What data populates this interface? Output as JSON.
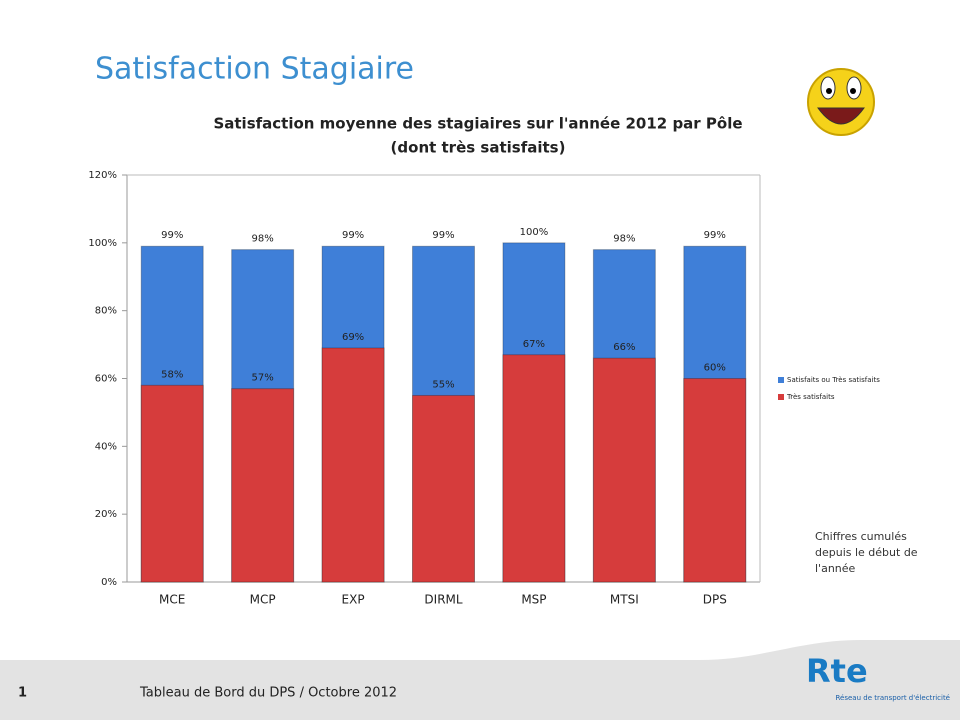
{
  "slide_title": "Satisfaction Stagiaire",
  "chart_data": {
    "type": "bar",
    "overlap": true,
    "title": "Satisfaction moyenne des stagiaires sur l'année 2012 par Pôle",
    "subtitle": "(dont très satisfaits)",
    "categories": [
      "MCE",
      "MCP",
      "EXP",
      "DIRML",
      "MSP",
      "MTSI",
      "DPS"
    ],
    "series": [
      {
        "name": "Satisfaits ou Très satisfaits",
        "color": "#3f7fd8",
        "values": [
          99,
          98,
          99,
          99,
          100,
          98,
          99
        ],
        "value_labels": [
          "99%",
          "98%",
          "99%",
          "99%",
          "100%",
          "98%",
          "99%"
        ]
      },
      {
        "name": "Très satisfaits",
        "color": "#d63c3c",
        "values": [
          58,
          57,
          69,
          55,
          67,
          66,
          60
        ],
        "value_labels": [
          "58%",
          "57%",
          "69%",
          "55%",
          "67%",
          "66%",
          "60%"
        ]
      }
    ],
    "ylim": [
      0,
      120
    ],
    "yticks": [
      {
        "value": 0,
        "label": "0%"
      },
      {
        "value": 20,
        "label": "20%"
      },
      {
        "value": 40,
        "label": "40%"
      },
      {
        "value": 60,
        "label": "60%"
      },
      {
        "value": 80,
        "label": "80%"
      },
      {
        "value": 100,
        "label": "100%"
      },
      {
        "value": 120,
        "label": "120%"
      }
    ],
    "legend": "right",
    "note": [
      "Chiffres cumulés",
      "depuis le début de",
      "l'année"
    ]
  },
  "footer": {
    "page": "1",
    "text": "Tableau de Bord du DPS / Octobre 2012",
    "logo": "Rte",
    "logo_caption": "Réseau de transport d'électricité"
  }
}
